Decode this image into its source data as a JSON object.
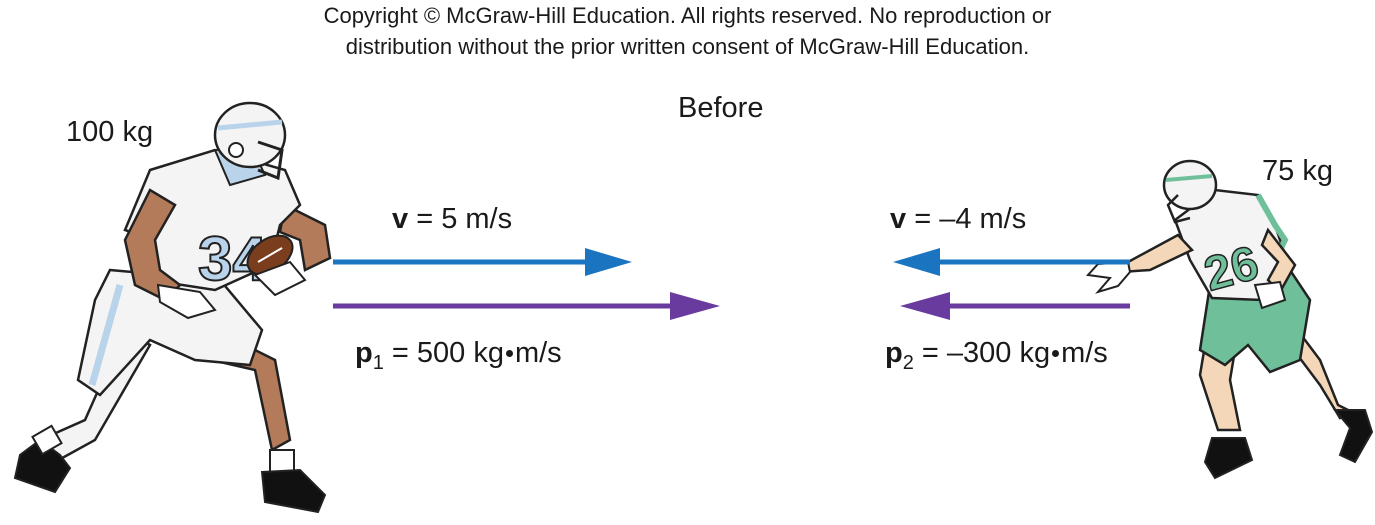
{
  "copyright": {
    "line1": "Copyright © McGraw-Hill Education.  All rights reserved. No reproduction or",
    "line2": "distribution without the prior written consent of McGraw-Hill Education."
  },
  "title": "Before",
  "player1": {
    "mass": "100 kg",
    "jersey": "34",
    "velocity": {
      "symbol": "v",
      "text": " = 5 m/s"
    },
    "momentum": {
      "symbol": "p",
      "sub": "1",
      "pre": " = 500 kg",
      "post": "m/s"
    }
  },
  "player2": {
    "mass": "75 kg",
    "jersey": "26",
    "velocity": {
      "symbol": "v",
      "text": " = –4 m/s"
    },
    "momentum": {
      "symbol": "p",
      "sub": "2",
      "pre": " = –300 kg",
      "post": "m/s"
    }
  },
  "colors": {
    "velocity_arrow": "#1b74c0",
    "momentum_arrow": "#6a3b9e",
    "player1_accent": "#b9d4ea",
    "player2_accent": "#6fc09a",
    "skin_dark": "#b47b5b",
    "skin_light": "#f3d7b8"
  }
}
